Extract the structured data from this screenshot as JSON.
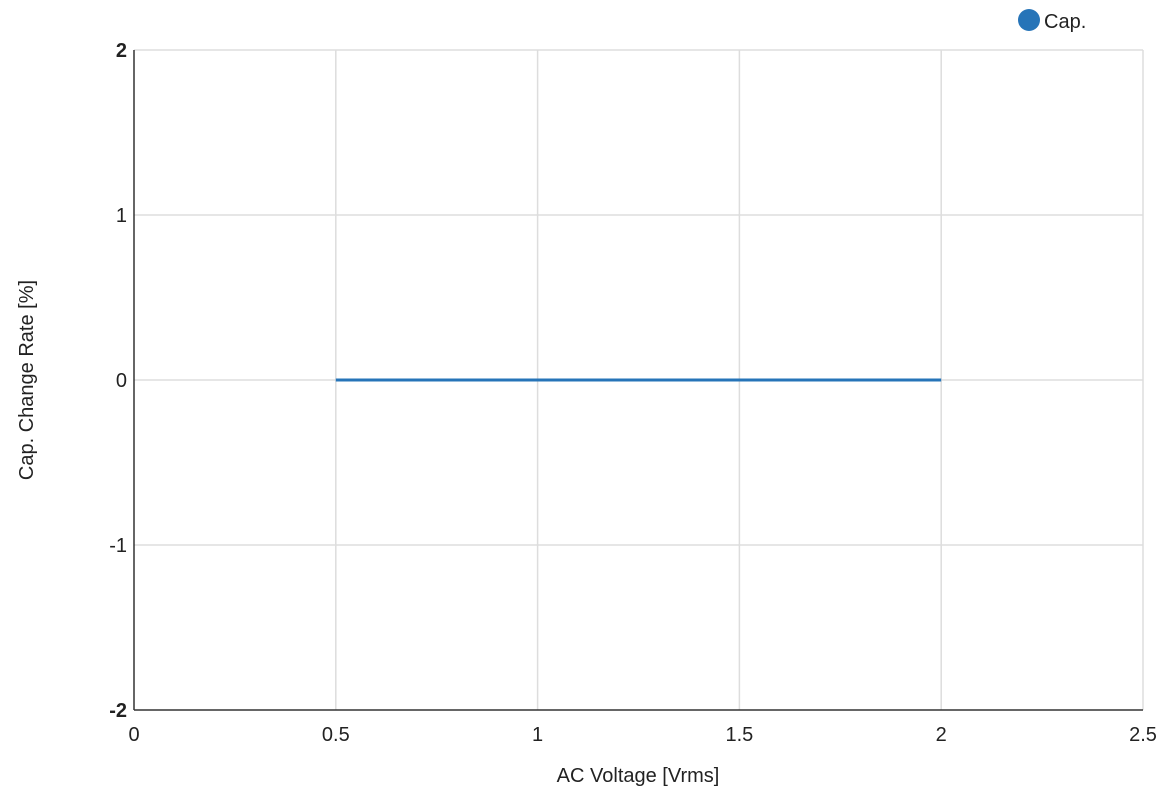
{
  "chart_data": {
    "type": "line",
    "xlabel": "AC Voltage [Vrms]",
    "ylabel": "Cap. Change Rate [%]",
    "xlim": [
      0,
      2.5
    ],
    "ylim": [
      -2,
      2
    ],
    "x_ticks": [
      0,
      0.5,
      1,
      1.5,
      2,
      2.5
    ],
    "x_tick_labels": [
      "0",
      "0.5",
      "1",
      "1.5",
      "2",
      "2.5"
    ],
    "y_ticks": [
      -2,
      -1,
      0,
      1,
      2
    ],
    "y_tick_labels": [
      "-2",
      "-1",
      "0",
      "1",
      "2"
    ],
    "grid": true,
    "legend_position": "top-right",
    "series": [
      {
        "name": "Cap.",
        "color": "#2674b8",
        "x": [
          0.5,
          1,
          1.5,
          2
        ],
        "y": [
          0,
          0,
          0,
          0
        ]
      }
    ]
  }
}
